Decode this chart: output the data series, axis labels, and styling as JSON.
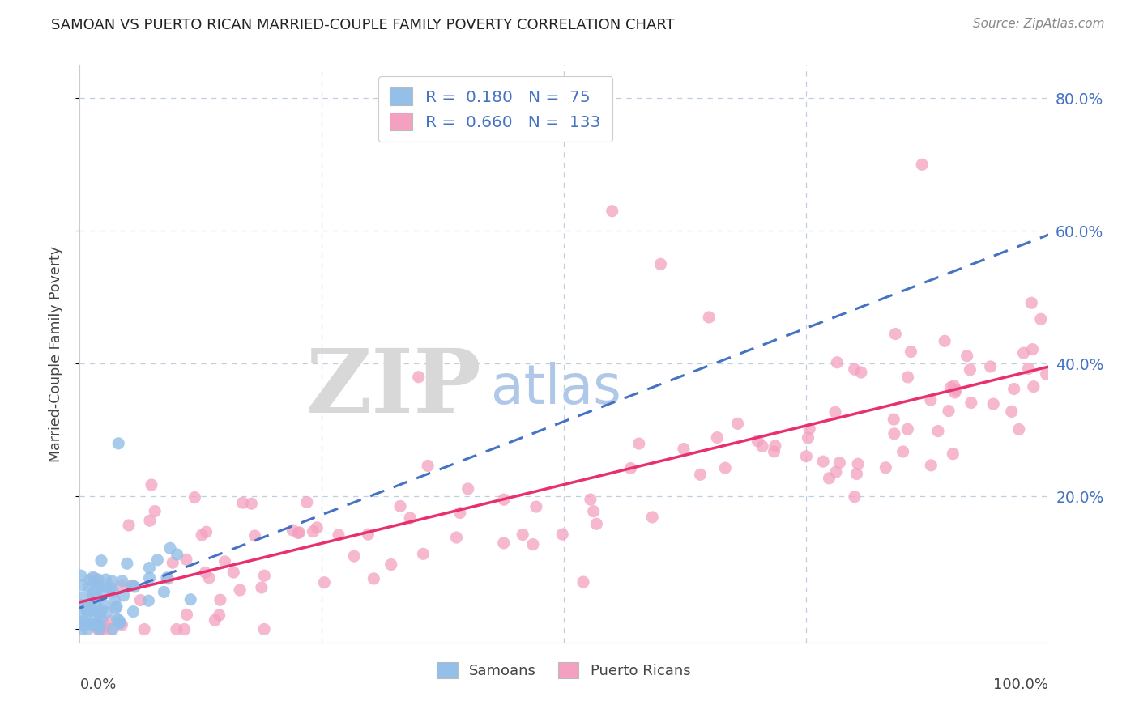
{
  "title": "SAMOAN VS PUERTO RICAN MARRIED-COUPLE FAMILY POVERTY CORRELATION CHART",
  "source": "Source: ZipAtlas.com",
  "ylabel": "Married-Couple Family Poverty",
  "xlim": [
    0,
    1.0
  ],
  "ylim": [
    -0.02,
    0.85
  ],
  "ytick_vals": [
    0.0,
    0.2,
    0.4,
    0.6,
    0.8
  ],
  "ytick_labels": [
    "",
    "20.0%",
    "40.0%",
    "60.0%",
    "80.0%"
  ],
  "samoans_R": 0.18,
  "samoans_N": 75,
  "puertoricans_R": 0.66,
  "puertoricans_N": 133,
  "samoans_color": "#93bfe8",
  "puertoricans_color": "#f4a0c0",
  "samoans_line_color": "#4472c4",
  "puertoricans_line_color": "#e8306e",
  "background_color": "#ffffff",
  "watermark_zip": "ZIP",
  "watermark_atlas": "atlas",
  "watermark_zip_color": "#d8d8d8",
  "watermark_atlas_color": "#b0c8e8",
  "grid_color": "#c0cfe0",
  "legend_text_color": "#4472c4"
}
